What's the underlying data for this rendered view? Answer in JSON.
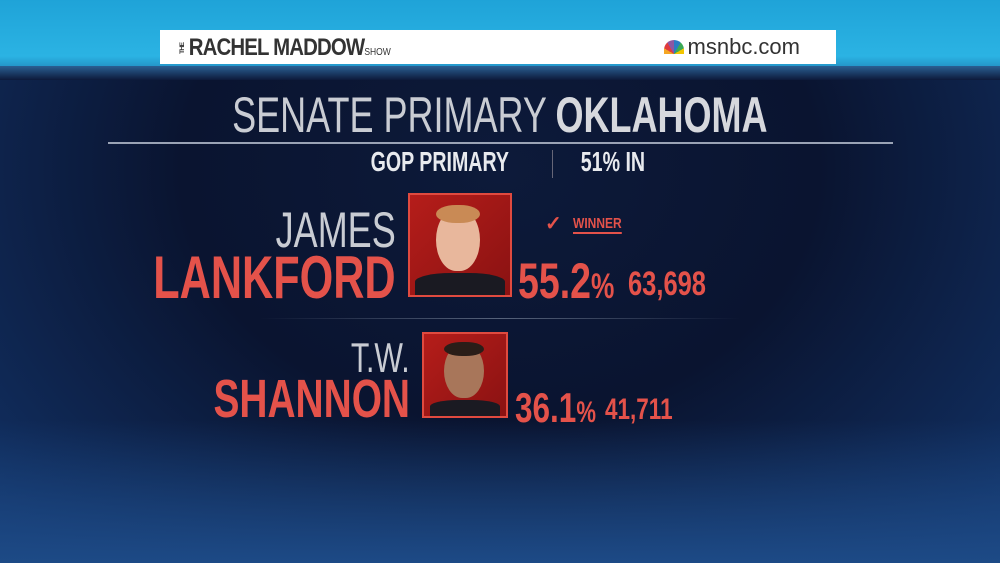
{
  "header": {
    "show_prefix": "THE",
    "show_name": "RACHEL MADDOW",
    "show_suffix": "SHOW",
    "network": "msnbc.com",
    "network_icon": "nbc-peacock-icon"
  },
  "title": {
    "light": "SENATE PRIMARY",
    "bold": "OKLAHOMA"
  },
  "subtitle": {
    "race": "GOP PRIMARY",
    "reporting": "51% IN"
  },
  "candidates": [
    {
      "first": "JAMES",
      "last": "LANKFORD",
      "percent": "55.2",
      "percent_sign": "%",
      "votes": "63,698",
      "winner_label": "WINNER",
      "winner_icon": "checkmark-icon"
    },
    {
      "first": "T.W.",
      "last": "SHANNON",
      "percent": "36.1",
      "percent_sign": "%",
      "votes": "41,711"
    }
  ],
  "colors": {
    "accent_red": "#e4524a",
    "background_navy": "#0a1430",
    "band_cyan": "#2bb3e3"
  }
}
